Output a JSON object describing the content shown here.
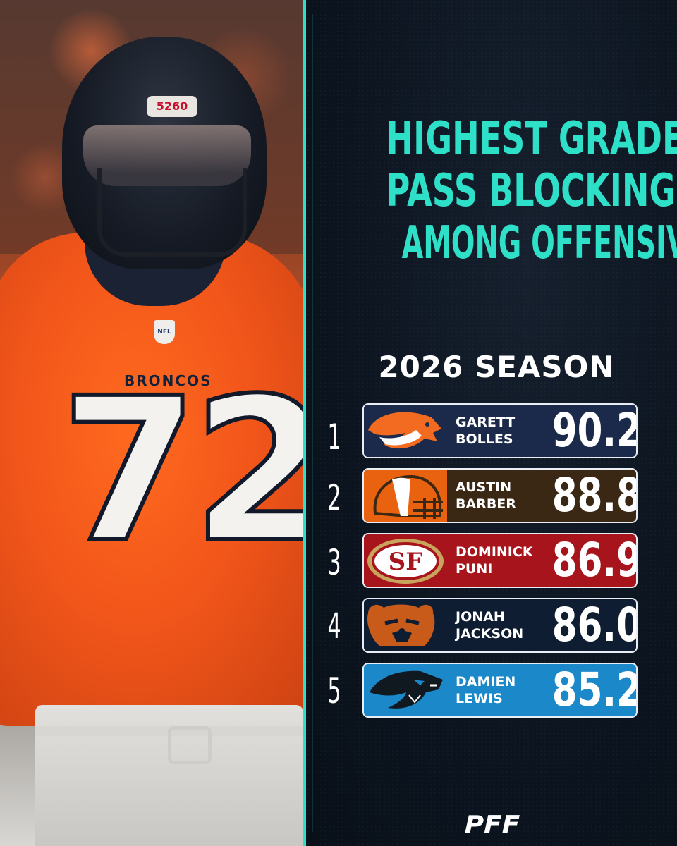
{
  "photo": {
    "helmet_plate": "5260",
    "team_word": "BRONCOS",
    "jersey_number": "72",
    "shield_text": "NFL"
  },
  "headline": {
    "line1": "HIGHEST GRADED",
    "line2": "PASS BLOCKING",
    "line3": "AMONG OFFENSIVE LINE"
  },
  "season": "2026 SEASON",
  "rankings": [
    {
      "rank": "1",
      "first": "GARETT",
      "last": "BOLLES",
      "grade": "90.2",
      "team_icon": "broncos-logo-icon",
      "color": "#1b2a4a"
    },
    {
      "rank": "2",
      "first": "AUSTIN",
      "last": "BARBER",
      "grade": "88.8",
      "team_icon": "browns-helmet-icon",
      "color": "#3a2714"
    },
    {
      "rank": "3",
      "first": "DOMINICK",
      "last": "PUNI",
      "grade": "86.9",
      "team_icon": "niners-logo-icon",
      "color": "#a8141c"
    },
    {
      "rank": "4",
      "first": "JONAH",
      "last": "JACKSON",
      "grade": "86.0",
      "team_icon": "bears-logo-icon",
      "color": "#0f1d33"
    },
    {
      "rank": "5",
      "first": "DAMIEN",
      "last": "LEWIS",
      "grade": "85.2",
      "team_icon": "panthers-logo-icon",
      "color": "#1a88c9"
    }
  ],
  "brand": "PFF",
  "colors": {
    "accent": "#2fe0c9",
    "background": "#0c1520",
    "text": "#ffffff"
  }
}
